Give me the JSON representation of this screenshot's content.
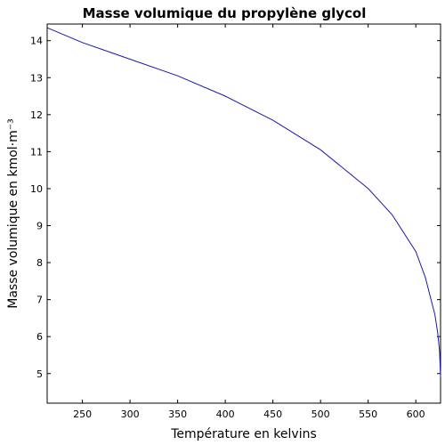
{
  "chart_data": {
    "type": "line",
    "title": "Masse volumique du propylène glycol",
    "xlabel": "Température en kelvins",
    "ylabel": "Masse volumique en kmol·m⁻³",
    "xlim": [
      213,
      626
    ],
    "ylim": [
      4.2,
      14.45
    ],
    "xticks": [
      250,
      300,
      350,
      400,
      450,
      500,
      550,
      600
    ],
    "yticks": [
      5,
      6,
      7,
      8,
      9,
      10,
      11,
      12,
      13,
      14
    ],
    "grid": false,
    "series": [
      {
        "color": "#1a1aa8",
        "x": [
          213,
          250,
          300,
          350,
          400,
          450,
          500,
          550,
          575,
          600,
          610,
          620,
          623,
          625,
          626
        ],
        "y": [
          14.35,
          13.95,
          13.5,
          13.05,
          12.5,
          11.85,
          11.05,
          10.0,
          9.3,
          8.3,
          7.6,
          6.6,
          6.1,
          5.6,
          4.9
        ]
      }
    ]
  }
}
